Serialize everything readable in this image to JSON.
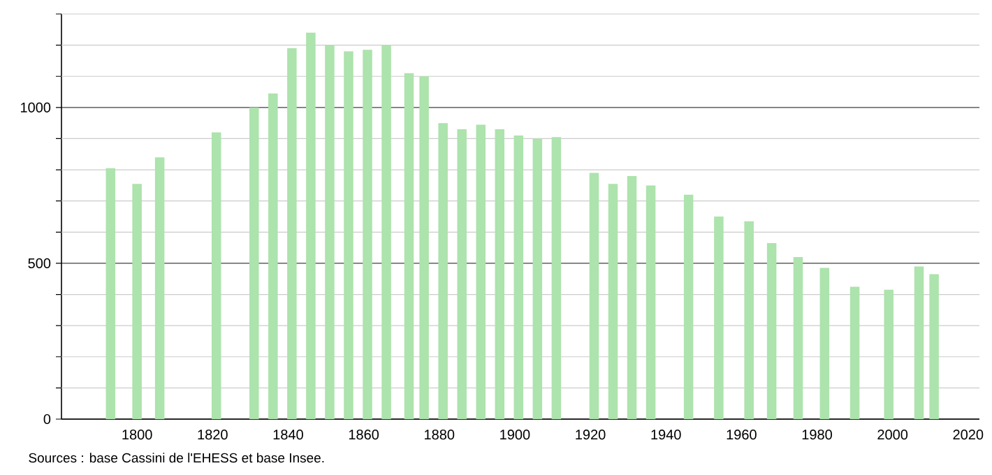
{
  "chart_data": {
    "type": "bar",
    "x": [
      1793,
      1800,
      1806,
      1821,
      1831,
      1836,
      1841,
      1846,
      1851,
      1856,
      1861,
      1866,
      1872,
      1876,
      1881,
      1886,
      1891,
      1896,
      1901,
      1906,
      1911,
      1921,
      1926,
      1931,
      1936,
      1946,
      1954,
      1962,
      1968,
      1975,
      1982,
      1990,
      1999,
      2007,
      2011
    ],
    "values": [
      805,
      755,
      840,
      920,
      1000,
      1045,
      1190,
      1240,
      1200,
      1180,
      1185,
      1200,
      1110,
      1100,
      950,
      930,
      945,
      930,
      910,
      900,
      905,
      790,
      755,
      780,
      750,
      720,
      650,
      635,
      565,
      520,
      485,
      425,
      415,
      490,
      465
    ],
    "color": "#ade3ad",
    "xlim": [
      1780,
      2023
    ],
    "ylim": [
      0,
      1300
    ],
    "xticks": [
      1800,
      1820,
      1840,
      1860,
      1880,
      1900,
      1920,
      1940,
      1960,
      1980,
      2000,
      2020
    ],
    "yticks": [
      0,
      {
        "value": 100,
        "label": null
      },
      {
        "value": 200,
        "label": null
      },
      {
        "value": 300,
        "label": null
      },
      {
        "value": 400,
        "label": null
      },
      500,
      {
        "value": 600,
        "label": null
      },
      {
        "value": 700,
        "label": null
      },
      {
        "value": 800,
        "label": null
      },
      {
        "value": 900,
        "label": null
      },
      1000,
      {
        "value": 1100,
        "label": null
      },
      {
        "value": 1200,
        "label": null
      },
      {
        "value": 1300,
        "label": null
      }
    ],
    "grid": "y",
    "annotations": [
      "Sources : base Cassini de l'EHESS et base Insee."
    ]
  }
}
